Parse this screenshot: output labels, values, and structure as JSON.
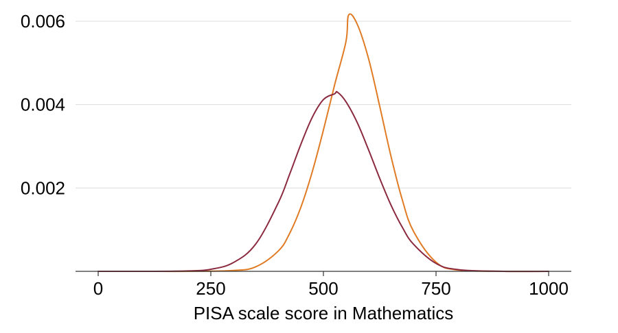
{
  "chart_data": {
    "type": "line",
    "title": "",
    "xlabel": "PISA scale score in Mathematics",
    "ylabel": "",
    "xlim": [
      -50,
      1050
    ],
    "ylim": [
      0,
      0.0063
    ],
    "x_ticks": [
      0,
      250,
      500,
      750,
      1000
    ],
    "x_tick_labels": [
      "0",
      "250",
      "500",
      "750",
      "1000"
    ],
    "y_ticks": [
      0.002,
      0.004,
      0.006
    ],
    "y_tick_labels": [
      "0.002",
      "0.004",
      "0.006"
    ],
    "grid": true,
    "series": [
      {
        "color": "#e07b24",
        "x": [
          0,
          100,
          200,
          300,
          350,
          400,
          425,
          450,
          475,
          500,
          525,
          550,
          556,
          575,
          600,
          625,
          650,
          675,
          700,
          750,
          800,
          900,
          1000
        ],
        "y": [
          0.0,
          0.0,
          0.0,
          2e-05,
          0.00011,
          0.00049,
          0.00091,
          0.00154,
          0.00238,
          0.00339,
          0.00448,
          0.00551,
          0.00615,
          0.00593,
          0.00511,
          0.00396,
          0.00276,
          0.00172,
          0.00096,
          0.00022,
          3e-05,
          0.0,
          0.0
        ]
      },
      {
        "color": "#8b2a3f",
        "x": [
          0,
          100,
          200,
          250,
          300,
          350,
          400,
          425,
          450,
          475,
          500,
          525,
          531,
          550,
          575,
          600,
          625,
          650,
          675,
          700,
          750,
          800,
          900,
          1000
        ],
        "y": [
          0.0,
          0.0,
          1e-05,
          5e-05,
          0.00021,
          0.00066,
          0.00165,
          0.00233,
          0.00305,
          0.00369,
          0.00412,
          0.00426,
          0.0043,
          0.00407,
          0.00357,
          0.00292,
          0.00223,
          0.00159,
          0.00106,
          0.00065,
          0.00019,
          4e-05,
          0.0,
          0.0
        ]
      }
    ]
  }
}
